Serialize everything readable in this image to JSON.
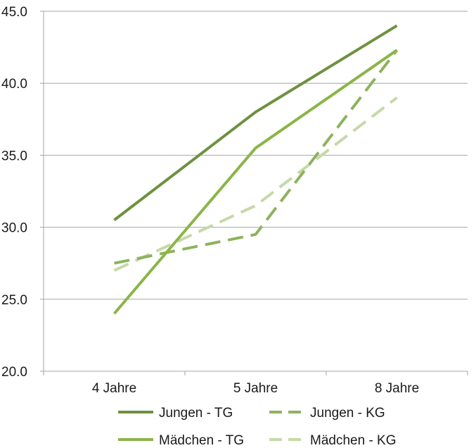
{
  "chart_data": {
    "type": "line",
    "title": "",
    "xlabel": "",
    "ylabel": "",
    "categories": [
      "4 Jahre",
      "5 Jahre",
      "8 Jahre"
    ],
    "ylim": [
      20.0,
      45.0
    ],
    "yticks": [
      "20.0",
      "25.0",
      "30.0",
      "35.0",
      "40.0",
      "45.0"
    ],
    "grid": true,
    "legend_position": "bottom",
    "series": [
      {
        "name": "Jungen - TG",
        "values": [
          30.5,
          38.0,
          44.0
        ],
        "color": "#6e9140",
        "dash": false
      },
      {
        "name": "Jungen - KG",
        "values": [
          27.5,
          29.5,
          42.3
        ],
        "color": "#8db35e",
        "dash": true
      },
      {
        "name": "Mädchen - TG",
        "values": [
          24.0,
          35.5,
          42.3
        ],
        "color": "#8ab548",
        "dash": false
      },
      {
        "name": "Mädchen - KG",
        "values": [
          27.0,
          31.5,
          39.0
        ],
        "color": "#c5d9a8",
        "dash": true
      }
    ]
  }
}
